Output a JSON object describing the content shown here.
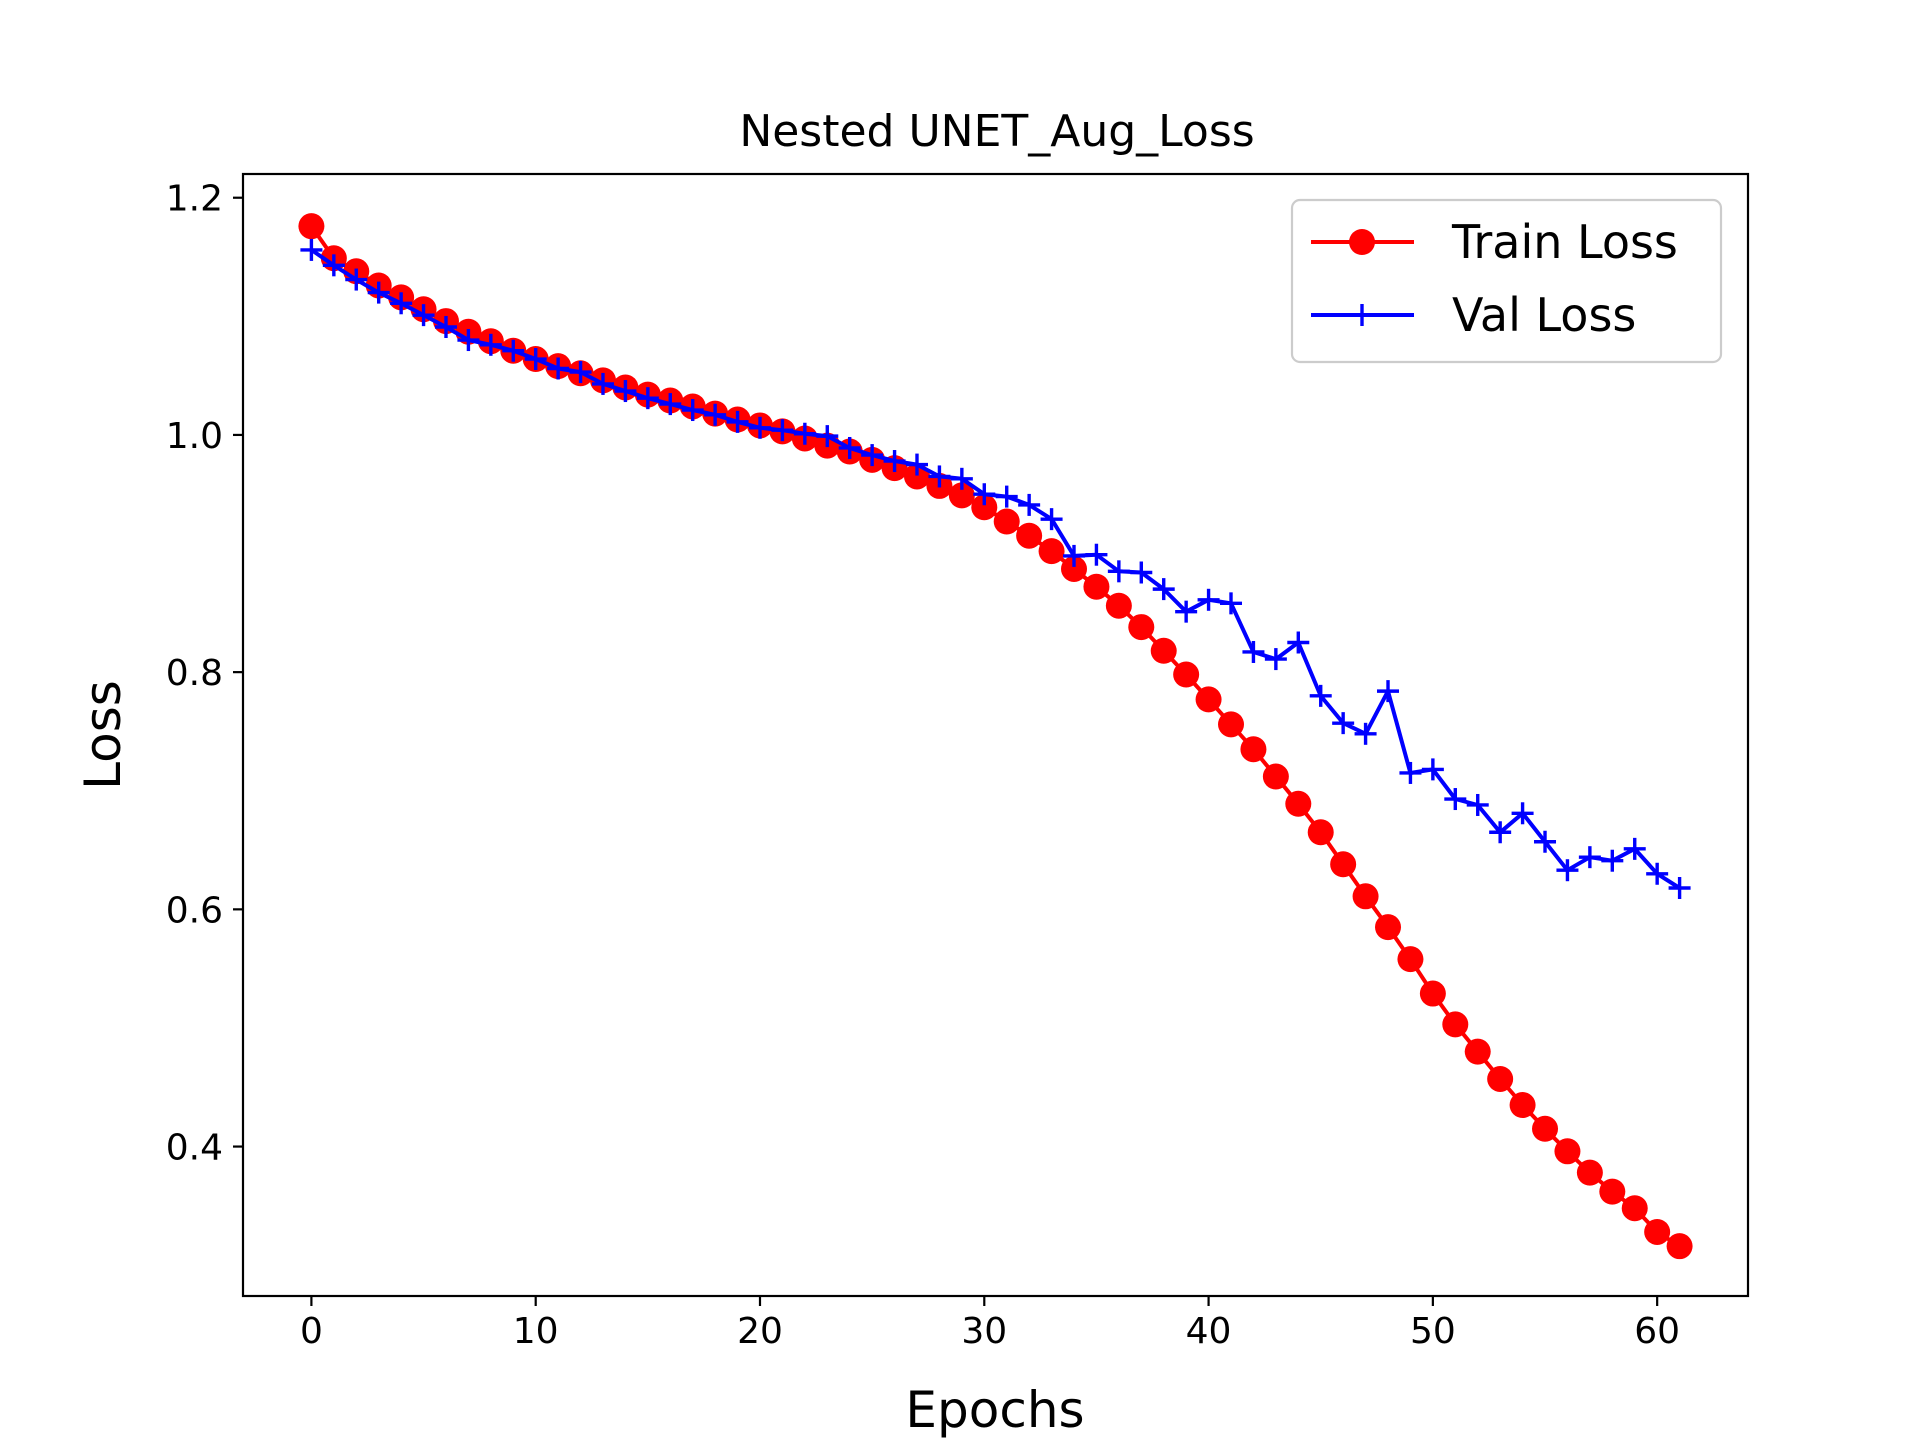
{
  "chart_data": {
    "type": "line",
    "title": "Nested UNET_Aug_Loss",
    "xlabel": "Epochs",
    "ylabel": "Loss",
    "xlim": [
      -3.05,
      64.05
    ],
    "ylim": [
      0.274,
      1.22
    ],
    "xticks": [
      0,
      10,
      20,
      30,
      40,
      50,
      60
    ],
    "yticks": [
      0.4,
      0.6,
      0.8,
      1.0,
      1.2
    ],
    "xtick_labels": [
      "0",
      "10",
      "20",
      "30",
      "40",
      "50",
      "60"
    ],
    "ytick_labels": [
      "0.4",
      "0.6",
      "0.8",
      "1.0",
      "1.2"
    ],
    "legend_position": "top-right",
    "series": [
      {
        "name": "Train Loss",
        "color": "#ff0000",
        "marker": "circle",
        "x": [
          0,
          1,
          2,
          3,
          4,
          5,
          6,
          7,
          8,
          9,
          10,
          11,
          12,
          13,
          14,
          15,
          16,
          17,
          18,
          19,
          20,
          21,
          22,
          23,
          24,
          25,
          26,
          27,
          28,
          29,
          30,
          31,
          32,
          33,
          34,
          35,
          36,
          37,
          38,
          39,
          40,
          41,
          42,
          43,
          44,
          45,
          46,
          47,
          48,
          49,
          50,
          51,
          52,
          53,
          54,
          55,
          56,
          57,
          58,
          59,
          60,
          61
        ],
        "values": [
          1.176,
          1.149,
          1.138,
          1.126,
          1.116,
          1.106,
          1.096,
          1.087,
          1.079,
          1.071,
          1.064,
          1.058,
          1.052,
          1.046,
          1.04,
          1.034,
          1.029,
          1.024,
          1.018,
          1.013,
          1.008,
          1.003,
          0.997,
          0.991,
          0.986,
          0.979,
          0.972,
          0.965,
          0.957,
          0.949,
          0.939,
          0.927,
          0.915,
          0.902,
          0.887,
          0.872,
          0.856,
          0.838,
          0.818,
          0.798,
          0.777,
          0.756,
          0.735,
          0.712,
          0.689,
          0.665,
          0.638,
          0.611,
          0.585,
          0.558,
          0.529,
          0.503,
          0.48,
          0.457,
          0.435,
          0.415,
          0.396,
          0.378,
          0.362,
          0.348,
          0.328,
          0.316
        ]
      },
      {
        "name": "Val Loss",
        "color": "#0000ff",
        "marker": "plus",
        "x": [
          0,
          1,
          2,
          3,
          4,
          5,
          6,
          7,
          8,
          9,
          10,
          11,
          12,
          13,
          14,
          15,
          16,
          17,
          18,
          19,
          20,
          21,
          22,
          23,
          24,
          25,
          26,
          27,
          28,
          29,
          30,
          31,
          32,
          33,
          34,
          35,
          36,
          37,
          38,
          39,
          40,
          41,
          42,
          43,
          44,
          45,
          46,
          47,
          48,
          49,
          50,
          51,
          52,
          53,
          54,
          55,
          56,
          57,
          58,
          59,
          60,
          61
        ],
        "values": [
          1.156,
          1.143,
          1.131,
          1.12,
          1.111,
          1.101,
          1.091,
          1.08,
          1.076,
          1.071,
          1.064,
          1.056,
          1.053,
          1.043,
          1.037,
          1.031,
          1.026,
          1.021,
          1.017,
          1.011,
          1.006,
          1.004,
          1.001,
          0.999,
          0.989,
          0.983,
          0.978,
          0.975,
          0.965,
          0.963,
          0.95,
          0.948,
          0.941,
          0.929,
          0.898,
          0.899,
          0.885,
          0.884,
          0.87,
          0.851,
          0.861,
          0.858,
          0.817,
          0.811,
          0.825,
          0.78,
          0.757,
          0.748,
          0.784,
          0.715,
          0.718,
          0.693,
          0.688,
          0.665,
          0.681,
          0.657,
          0.633,
          0.644,
          0.641,
          0.651,
          0.63,
          0.618
        ]
      }
    ]
  }
}
